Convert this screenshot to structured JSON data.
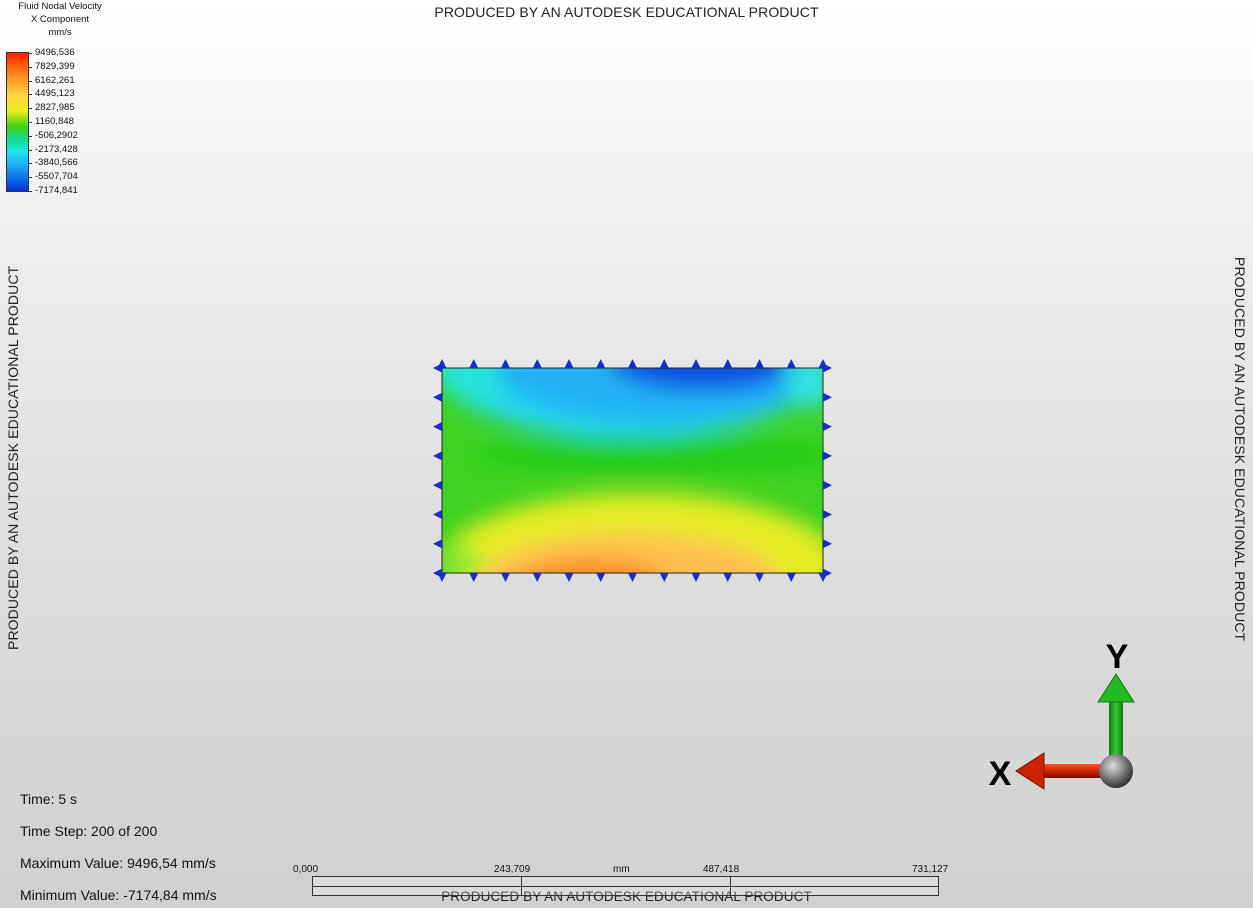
{
  "watermark": {
    "top": "PRODUCED BY AN AUTODESK EDUCATIONAL PRODUCT",
    "bottom": "PRODUCED BY AN AUTODESK EDUCATIONAL PRODUCT",
    "left": "PRODUCED BY AN AUTODESK EDUCATIONAL PRODUCT",
    "right": "PRODUCED BY AN AUTODESK EDUCATIONAL PRODUCT"
  },
  "legend": {
    "title_line1": "Fluid Nodal Velocity",
    "title_line2": "X Component",
    "unit": "mm/s",
    "values": [
      "9496,536",
      "7829,399",
      "6162,261",
      "4495,123",
      "2827,985",
      "1160,848",
      "-506,2902",
      "-2173,428",
      "-3840,566",
      "-5507,704",
      "-7174,841"
    ]
  },
  "info": {
    "time": "Time: 5 s",
    "time_step": "Time Step:  200 of 200",
    "max_value": "Maximum Value: 9496,54 mm/s",
    "min_value": "Minimum Value: -7174,84 mm/s"
  },
  "scale": {
    "labels": [
      "0,000",
      "243,709",
      "487,418",
      "731,127"
    ],
    "unit": "mm"
  },
  "triad": {
    "x_label": "X",
    "y_label": "Y",
    "x_color": "#cc2200",
    "y_color": "#22aa22"
  },
  "colors": {
    "constraint": "#1a2cc8"
  }
}
